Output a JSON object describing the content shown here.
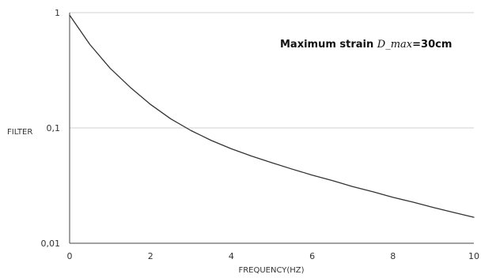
{
  "chart_data": {
    "type": "line",
    "title": "",
    "xlabel": "FREQUENCY(HZ)",
    "ylabel": "FILTER",
    "x_scale": "linear",
    "y_scale": "log",
    "xlim": [
      0,
      10
    ],
    "ylim": [
      0.01,
      1
    ],
    "x_ticks": [
      0,
      2,
      4,
      6,
      8,
      10
    ],
    "y_ticks": [
      0.01,
      0.1,
      1
    ],
    "x_tick_labels": [
      "0",
      "2",
      "4",
      "6",
      "8",
      "10"
    ],
    "y_tick_labels": [
      "0,01",
      "0,1",
      "1"
    ],
    "grid": "horizontal",
    "legend": "none",
    "annotation": {
      "prefix": "Maximum strain ",
      "symbol": "D_max",
      "suffix": "=30cm"
    },
    "series": [
      {
        "color": "#333333",
        "x": [
          0,
          0.5,
          1,
          1.5,
          2,
          2.5,
          3,
          3.5,
          4,
          4.5,
          5,
          5.5,
          6,
          6.5,
          7,
          7.5,
          8,
          8.5,
          9,
          9.5,
          10
        ],
        "y": [
          0.95,
          0.53,
          0.33,
          0.225,
          0.16,
          0.12,
          0.095,
          0.078,
          0.066,
          0.057,
          0.05,
          0.044,
          0.039,
          0.035,
          0.031,
          0.028,
          0.025,
          0.0227,
          0.0204,
          0.0185,
          0.0168
        ]
      }
    ]
  }
}
